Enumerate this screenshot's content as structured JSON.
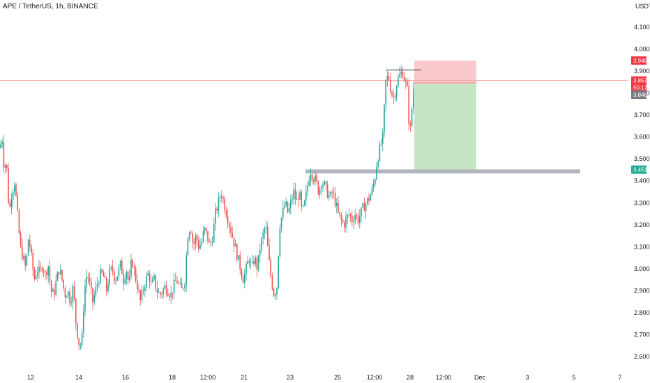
{
  "header": {
    "title": "APE / TetherUS, 1h, BINANCE",
    "currency": "USDT"
  },
  "colors": {
    "up": "#26a69a",
    "down": "#ef5350",
    "stop_zone": "#f9c9cc",
    "target_zone": "#c6e6c3",
    "support_band": "#b2b5be",
    "current_line": "#f4a6a6",
    "axis_text": "#131722"
  },
  "chart_data": {
    "type": "candlestick",
    "title": "APE / TetherUS, 1h, BINANCE",
    "ylabel": "USDT",
    "ylim": [
      2.56,
      4.18
    ],
    "y_ticks": [
      "4.100",
      "4.000",
      "3.900",
      "3.800",
      "3.700",
      "3.600",
      "3.500",
      "3.400",
      "3.300",
      "3.200",
      "3.100",
      "3.000",
      "2.900",
      "2.800",
      "2.700",
      "2.600"
    ],
    "x_ticks": [
      "12",
      "14",
      "16",
      "18",
      "12:00",
      "21",
      "23",
      "25",
      "12:00",
      "28",
      "12:00",
      "Dec",
      "3",
      "5",
      "7"
    ],
    "price_path": [
      [
        0,
        3.55
      ],
      [
        3,
        3.6
      ],
      [
        6,
        3.45
      ],
      [
        9,
        3.5
      ],
      [
        13,
        3.25
      ],
      [
        17,
        3.35
      ],
      [
        21,
        3.4
      ],
      [
        25,
        3.25
      ],
      [
        29,
        3.1
      ],
      [
        33,
        3.05
      ],
      [
        37,
        3.0
      ],
      [
        41,
        3.15
      ],
      [
        45,
        3.05
      ],
      [
        49,
        2.95
      ],
      [
        53,
        3.0
      ],
      [
        57,
        2.98
      ],
      [
        61,
        3.02
      ],
      [
        65,
        2.97
      ],
      [
        69,
        3.02
      ],
      [
        73,
        2.9
      ],
      [
        77,
        2.88
      ],
      [
        81,
        2.95
      ],
      [
        85,
        3.0
      ],
      [
        89,
        2.95
      ],
      [
        93,
        2.88
      ],
      [
        97,
        2.9
      ],
      [
        101,
        2.85
      ],
      [
        105,
        2.92
      ],
      [
        109,
        2.75
      ],
      [
        113,
        2.66
      ],
      [
        117,
        2.65
      ],
      [
        121,
        2.9
      ],
      [
        125,
        2.98
      ],
      [
        129,
        2.92
      ],
      [
        133,
        2.85
      ],
      [
        137,
        2.9
      ],
      [
        141,
        2.95
      ],
      [
        145,
        2.98
      ],
      [
        149,
        2.96
      ],
      [
        153,
        2.9
      ],
      [
        157,
        2.98
      ],
      [
        161,
        3.0
      ],
      [
        165,
        2.95
      ],
      [
        169,
        2.98
      ],
      [
        173,
        3.02
      ],
      [
        177,
        2.95
      ],
      [
        181,
        3.0
      ],
      [
        185,
        2.92
      ],
      [
        189,
        3.05
      ],
      [
        193,
        2.98
      ],
      [
        197,
        2.92
      ],
      [
        201,
        2.85
      ],
      [
        205,
        2.9
      ],
      [
        209,
        2.95
      ],
      [
        213,
        2.98
      ],
      [
        217,
        2.92
      ],
      [
        221,
        2.95
      ],
      [
        225,
        2.9
      ],
      [
        229,
        2.88
      ],
      [
        233,
        2.9
      ],
      [
        237,
        2.92
      ],
      [
        241,
        2.9
      ],
      [
        245,
        2.88
      ],
      [
        249,
        2.92
      ],
      [
        253,
        2.95
      ],
      [
        257,
        2.92
      ],
      [
        261,
        2.9
      ],
      [
        265,
        2.95
      ],
      [
        269,
        3.15
      ],
      [
        273,
        3.2
      ],
      [
        277,
        3.1
      ],
      [
        281,
        3.15
      ],
      [
        285,
        3.1
      ],
      [
        289,
        3.12
      ],
      [
        293,
        3.18
      ],
      [
        297,
        3.15
      ],
      [
        301,
        3.1
      ],
      [
        305,
        3.15
      ],
      [
        309,
        3.25
      ],
      [
        313,
        3.3
      ],
      [
        317,
        3.35
      ],
      [
        321,
        3.3
      ],
      [
        325,
        3.25
      ],
      [
        329,
        3.2
      ],
      [
        333,
        3.15
      ],
      [
        337,
        3.1
      ],
      [
        341,
        3.05
      ],
      [
        345,
        3.0
      ],
      [
        349,
        2.95
      ],
      [
        353,
        3.0
      ],
      [
        357,
        3.05
      ],
      [
        361,
        3.0
      ],
      [
        365,
        3.05
      ],
      [
        369,
        3.0
      ],
      [
        373,
        3.1
      ],
      [
        377,
        3.15
      ],
      [
        381,
        3.2
      ],
      [
        385,
        3.05
      ],
      [
        389,
        2.95
      ],
      [
        393,
        2.88
      ],
      [
        397,
        2.92
      ],
      [
        401,
        3.2
      ],
      [
        405,
        3.25
      ],
      [
        409,
        3.3
      ],
      [
        413,
        3.25
      ],
      [
        417,
        3.3
      ],
      [
        421,
        3.35
      ],
      [
        425,
        3.3
      ],
      [
        429,
        3.35
      ],
      [
        433,
        3.25
      ],
      [
        437,
        3.3
      ],
      [
        441,
        3.38
      ],
      [
        445,
        3.45
      ],
      [
        449,
        3.42
      ],
      [
        453,
        3.4
      ],
      [
        457,
        3.35
      ],
      [
        461,
        3.4
      ],
      [
        465,
        3.38
      ],
      [
        469,
        3.35
      ],
      [
        473,
        3.32
      ],
      [
        477,
        3.35
      ],
      [
        481,
        3.3
      ],
      [
        485,
        3.25
      ],
      [
        489,
        3.22
      ],
      [
        493,
        3.2
      ],
      [
        497,
        3.23
      ],
      [
        501,
        3.25
      ],
      [
        505,
        3.22
      ],
      [
        509,
        3.25
      ],
      [
        513,
        3.22
      ],
      [
        517,
        3.25
      ],
      [
        521,
        3.28
      ],
      [
        525,
        3.3
      ],
      [
        529,
        3.32
      ],
      [
        533,
        3.35
      ],
      [
        537,
        3.4
      ],
      [
        541,
        3.5
      ],
      [
        545,
        3.55
      ],
      [
        549,
        3.6
      ],
      [
        553,
        3.85
      ],
      [
        557,
        3.88
      ],
      [
        561,
        3.8
      ],
      [
        565,
        3.78
      ],
      [
        569,
        3.85
      ],
      [
        573,
        3.88
      ],
      [
        577,
        3.9
      ],
      [
        581,
        3.85
      ],
      [
        585,
        3.8
      ],
      [
        587,
        3.6
      ],
      [
        589,
        3.65
      ],
      [
        592,
        3.8
      ],
      [
        594,
        3.857
      ]
    ],
    "last_price": "3.857",
    "countdown": "50:17",
    "position": {
      "entry": "3.846",
      "stop": "3.948",
      "target": "3.451"
    },
    "resistance_line": 3.905,
    "support_band": [
      3.434,
      3.452
    ]
  },
  "labels": {
    "stop_price": "3.948",
    "last_price": "3.857",
    "countdown": "50:17",
    "entry_price": "3.846",
    "target_price": "3.451"
  }
}
